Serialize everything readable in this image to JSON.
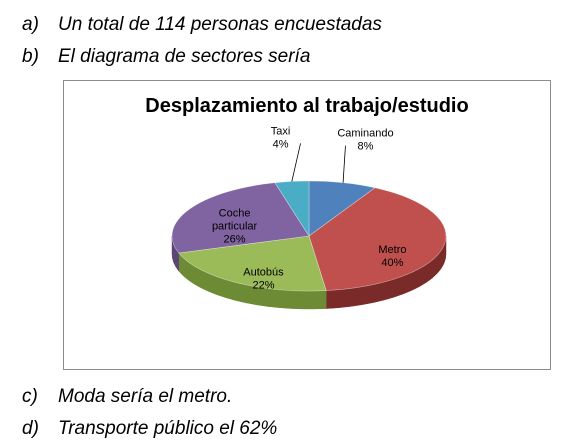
{
  "items": [
    {
      "letter": "a)",
      "text": "Un total de 114 personas encuestadas"
    },
    {
      "letter": "b)",
      "text": "El diagrama de sectores sería"
    },
    {
      "letter": "c)",
      "text": "Moda sería el metro."
    },
    {
      "letter": "d)",
      "text": "Transporte público el 62%"
    }
  ],
  "chart_data": {
    "type": "pie",
    "title": "Desplazamiento al trabajo/estudio",
    "three_d": true,
    "legend": "none",
    "slices": [
      {
        "name": "Caminando",
        "value": 8,
        "label_lines": [
          "Caminando",
          "8%"
        ],
        "color": "#4f81bd",
        "dark": "#3a6290"
      },
      {
        "name": "Metro",
        "value": 40,
        "label_lines": [
          "Metro",
          "40%"
        ],
        "color": "#c0504d",
        "dark": "#7a2a28"
      },
      {
        "name": "Autobús",
        "value": 22,
        "label_lines": [
          "Autobús",
          "22%"
        ],
        "color": "#9bbb59",
        "dark": "#6d8a35"
      },
      {
        "name": "Coche particular",
        "value": 26,
        "label_lines": [
          "Coche",
          "particular",
          "26%"
        ],
        "color": "#8064a2",
        "dark": "#5a4675"
      },
      {
        "name": "Taxi",
        "value": 4,
        "label_lines": [
          "Taxi",
          "4%"
        ],
        "color": "#4bacc6",
        "dark": "#2f7f95"
      }
    ]
  }
}
